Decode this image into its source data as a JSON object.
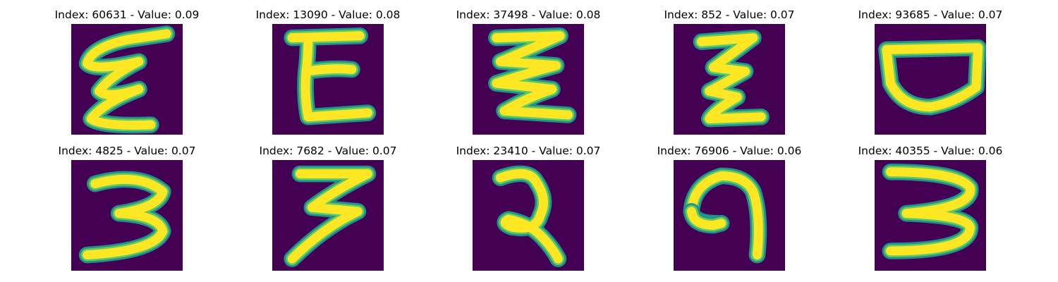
{
  "colors": {
    "background": "#440154",
    "stroke_core": "#fde725",
    "stroke_mid": "#5ec962",
    "stroke_edge": "#21918c"
  },
  "tiles": [
    {
      "title": "Index: 60631 - Value: 0.09"
    },
    {
      "title": "Index: 13090 - Value: 0.08"
    },
    {
      "title": "Index: 37498 - Value: 0.08"
    },
    {
      "title": "Index: 852 - Value: 0.07"
    },
    {
      "title": "Index: 93685 - Value: 0.07"
    },
    {
      "title": "Index: 4825 - Value: 0.07"
    },
    {
      "title": "Index: 7682 - Value: 0.07"
    },
    {
      "title": "Index: 23410 - Value: 0.07"
    },
    {
      "title": "Index: 76906 - Value: 0.06"
    },
    {
      "title": "Index: 40355 - Value: 0.06"
    }
  ]
}
